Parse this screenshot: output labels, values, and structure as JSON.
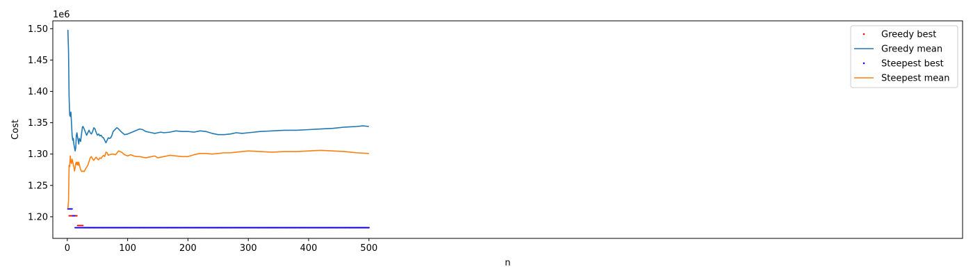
{
  "chart_data": {
    "type": "line",
    "title": "",
    "xlabel": "n",
    "ylabel": "Cost",
    "y_offset_label": "1e6",
    "xlim": [
      -24,
      1484
    ],
    "ylim": [
      1.1655,
      1.5125
    ],
    "xticks": [
      0,
      100,
      200,
      300,
      400,
      500
    ],
    "yticks": [
      1.2,
      1.25,
      1.3,
      1.35,
      1.4,
      1.45,
      1.5
    ],
    "xtick_labels": [
      "0",
      "100",
      "200",
      "300",
      "400",
      "500"
    ],
    "ytick_labels": [
      "1.20",
      "1.25",
      "1.30",
      "1.35",
      "1.40",
      "1.45",
      "1.50"
    ],
    "grid": false,
    "legend_position": "top-right",
    "series": [
      {
        "name": "Greedy best",
        "kind": "points",
        "color": "#ff0000",
        "segments": [
          {
            "from": 1,
            "to": 2,
            "value": 1.2125
          },
          {
            "from": 3,
            "to": 16,
            "value": 1.2015
          },
          {
            "from": 17,
            "to": 26,
            "value": 1.186
          },
          {
            "from": 27,
            "to": 500,
            "value": 1.1825
          }
        ]
      },
      {
        "name": "Greedy mean",
        "kind": "line",
        "color": "#1f77b4",
        "x": [
          1,
          2,
          3,
          4,
          5,
          6,
          7,
          8,
          9,
          10,
          11,
          12,
          13,
          14,
          15,
          16,
          17,
          18,
          19,
          20,
          22,
          24,
          25,
          26,
          28,
          30,
          32,
          34,
          36,
          38,
          40,
          42,
          44,
          46,
          48,
          50,
          52,
          54,
          56,
          58,
          60,
          62,
          64,
          66,
          68,
          70,
          72,
          74,
          76,
          78,
          80,
          82,
          84,
          86,
          88,
          90,
          95,
          100,
          105,
          110,
          115,
          120,
          125,
          130,
          135,
          140,
          145,
          150,
          155,
          160,
          170,
          180,
          190,
          200,
          210,
          220,
          230,
          240,
          250,
          260,
          270,
          280,
          290,
          300,
          320,
          340,
          360,
          380,
          400,
          420,
          440,
          460,
          480,
          490,
          500
        ],
        "y": [
          1.498,
          1.465,
          1.39,
          1.362,
          1.36,
          1.367,
          1.348,
          1.33,
          1.322,
          1.325,
          1.315,
          1.31,
          1.305,
          1.31,
          1.33,
          1.334,
          1.327,
          1.322,
          1.316,
          1.325,
          1.32,
          1.335,
          1.343,
          1.344,
          1.34,
          1.335,
          1.33,
          1.334,
          1.338,
          1.334,
          1.332,
          1.336,
          1.342,
          1.34,
          1.334,
          1.33,
          1.332,
          1.329,
          1.33,
          1.327,
          1.326,
          1.322,
          1.318,
          1.322,
          1.326,
          1.325,
          1.326,
          1.33,
          1.336,
          1.338,
          1.34,
          1.342,
          1.341,
          1.339,
          1.337,
          1.335,
          1.331,
          1.332,
          1.334,
          1.336,
          1.338,
          1.34,
          1.339,
          1.336,
          1.335,
          1.334,
          1.333,
          1.334,
          1.335,
          1.334,
          1.335,
          1.337,
          1.336,
          1.336,
          1.335,
          1.337,
          1.336,
          1.333,
          1.331,
          1.331,
          1.332,
          1.334,
          1.333,
          1.334,
          1.336,
          1.337,
          1.338,
          1.338,
          1.339,
          1.34,
          1.341,
          1.343,
          1.344,
          1.345,
          1.344
        ]
      },
      {
        "name": "Steepest best",
        "kind": "points",
        "color": "#0000ff",
        "segments": [
          {
            "from": 1,
            "to": 8,
            "value": 1.2125
          },
          {
            "from": 9,
            "to": 12,
            "value": 1.2015
          },
          {
            "from": 13,
            "to": 500,
            "value": 1.1825
          }
        ]
      },
      {
        "name": "Steepest mean",
        "kind": "line",
        "color": "#ff7f0e",
        "x": [
          1,
          2,
          3,
          4,
          5,
          6,
          7,
          8,
          9,
          10,
          11,
          12,
          13,
          14,
          15,
          16,
          17,
          18,
          19,
          20,
          22,
          24,
          26,
          28,
          30,
          32,
          34,
          36,
          38,
          40,
          42,
          44,
          46,
          48,
          50,
          52,
          54,
          56,
          58,
          60,
          62,
          64,
          66,
          68,
          70,
          75,
          80,
          85,
          90,
          95,
          100,
          105,
          110,
          115,
          120,
          125,
          130,
          135,
          140,
          145,
          150,
          155,
          160,
          170,
          180,
          190,
          200,
          210,
          220,
          230,
          240,
          250,
          260,
          270,
          280,
          290,
          300,
          320,
          340,
          360,
          380,
          400,
          420,
          440,
          460,
          480,
          500
        ],
        "y": [
          1.213,
          1.225,
          1.282,
          1.28,
          1.297,
          1.287,
          1.285,
          1.292,
          1.288,
          1.283,
          1.279,
          1.273,
          1.278,
          1.285,
          1.287,
          1.283,
          1.287,
          1.282,
          1.287,
          1.283,
          1.275,
          1.272,
          1.273,
          1.272,
          1.276,
          1.279,
          1.282,
          1.288,
          1.294,
          1.296,
          1.292,
          1.29,
          1.293,
          1.295,
          1.292,
          1.291,
          1.294,
          1.293,
          1.296,
          1.298,
          1.296,
          1.303,
          1.302,
          1.298,
          1.299,
          1.3,
          1.299,
          1.305,
          1.303,
          1.299,
          1.297,
          1.299,
          1.297,
          1.296,
          1.296,
          1.295,
          1.294,
          1.295,
          1.296,
          1.297,
          1.294,
          1.295,
          1.296,
          1.298,
          1.297,
          1.296,
          1.296,
          1.299,
          1.301,
          1.301,
          1.3,
          1.301,
          1.302,
          1.302,
          1.303,
          1.304,
          1.305,
          1.304,
          1.303,
          1.304,
          1.304,
          1.305,
          1.306,
          1.305,
          1.304,
          1.302,
          1.301
        ]
      }
    ]
  }
}
